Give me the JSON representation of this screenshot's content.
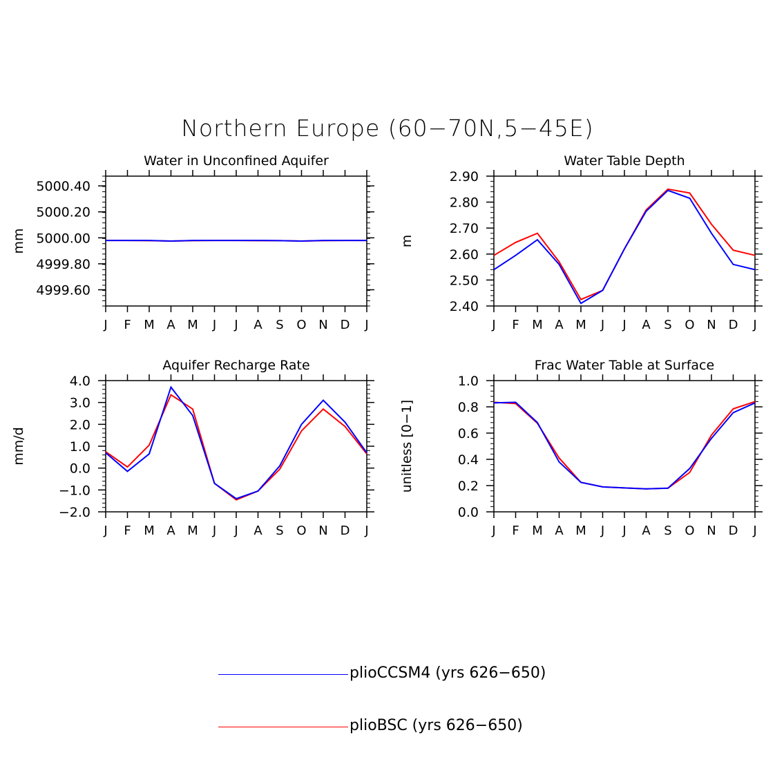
{
  "title": "Northern Europe (60−70N,5−45E)",
  "colors": {
    "plioCCSM4": "#0000ff",
    "plioBSC": "#ff0000"
  },
  "legend": [
    {
      "label": "plioCCSM4 (yrs 626−650)",
      "color": "#0000ff"
    },
    {
      "label": "plioBSC (yrs 626−650)",
      "color": "#ff0000"
    }
  ],
  "chart_data": [
    {
      "type": "line",
      "title": "Water in Unconfined Aquifer",
      "xlabel": "",
      "ylabel": "mm",
      "categories": [
        "J",
        "F",
        "M",
        "A",
        "M",
        "J",
        "J",
        "A",
        "S",
        "O",
        "N",
        "D",
        "J"
      ],
      "ylim": [
        4999.475,
        5000.475
      ],
      "yticks": [
        4999.6,
        4999.8,
        5000.0,
        5000.2,
        5000.4
      ],
      "ytick_labels": [
        "4999.60",
        "4999.80",
        "5000.00",
        "5000.20",
        "5000.40"
      ],
      "series": [
        {
          "name": "plioCCSM4",
          "color": "#0000ff",
          "values": [
            4999.98,
            4999.98,
            4999.98,
            4999.975,
            4999.98,
            4999.98,
            4999.98,
            4999.98,
            4999.978,
            4999.975,
            4999.98,
            4999.98,
            4999.98
          ]
        },
        {
          "name": "plioBSC",
          "color": "#ff0000",
          "values": [
            4999.98,
            4999.98,
            4999.978,
            4999.975,
            4999.978,
            4999.98,
            4999.98,
            4999.978,
            4999.978,
            4999.975,
            4999.978,
            4999.98,
            4999.98
          ]
        }
      ]
    },
    {
      "type": "line",
      "title": "Water Table Depth",
      "xlabel": "",
      "ylabel": "m",
      "categories": [
        "J",
        "F",
        "M",
        "A",
        "M",
        "J",
        "J",
        "A",
        "S",
        "O",
        "N",
        "D",
        "J"
      ],
      "ylim": [
        2.4,
        2.9
      ],
      "yticks": [
        2.4,
        2.5,
        2.6,
        2.7,
        2.8,
        2.9
      ],
      "ytick_labels": [
        "2.40",
        "2.50",
        "2.60",
        "2.70",
        "2.80",
        "2.90"
      ],
      "series": [
        {
          "name": "plioCCSM4",
          "color": "#0000ff",
          "values": [
            2.54,
            2.595,
            2.655,
            2.56,
            2.41,
            2.46,
            2.62,
            2.765,
            2.845,
            2.815,
            2.68,
            2.56,
            2.54
          ]
        },
        {
          "name": "plioBSC",
          "color": "#ff0000",
          "values": [
            2.595,
            2.645,
            2.68,
            2.57,
            2.425,
            2.46,
            2.62,
            2.77,
            2.85,
            2.835,
            2.715,
            2.615,
            2.595
          ]
        }
      ]
    },
    {
      "type": "line",
      "title": "Aquifer Recharge Rate",
      "xlabel": "",
      "ylabel": "mm/d",
      "categories": [
        "J",
        "F",
        "M",
        "A",
        "M",
        "J",
        "J",
        "A",
        "S",
        "O",
        "N",
        "D",
        "J"
      ],
      "ylim": [
        -2.0,
        4.0
      ],
      "yticks": [
        -2,
        -1,
        0,
        1,
        2,
        3,
        4
      ],
      "ytick_labels": [
        "−2.0",
        "−1.0",
        "0.0",
        "1.0",
        "2.0",
        "3.0",
        "4.0"
      ],
      "series": [
        {
          "name": "plioCCSM4",
          "color": "#0000ff",
          "values": [
            0.7,
            -0.15,
            0.65,
            3.7,
            2.4,
            -0.7,
            -1.4,
            -1.05,
            0.1,
            2.0,
            3.1,
            2.1,
            0.7
          ]
        },
        {
          "name": "plioBSC",
          "color": "#ff0000",
          "values": [
            0.75,
            0.05,
            1.05,
            3.35,
            2.7,
            -0.7,
            -1.45,
            -1.05,
            -0.05,
            1.7,
            2.7,
            1.9,
            0.65
          ]
        }
      ]
    },
    {
      "type": "line",
      "title": "Frac Water Table at Surface",
      "xlabel": "",
      "ylabel": "unitless [0−1]",
      "categories": [
        "J",
        "F",
        "M",
        "A",
        "M",
        "J",
        "J",
        "A",
        "S",
        "O",
        "N",
        "D",
        "J"
      ],
      "ylim": [
        0.0,
        1.0
      ],
      "yticks": [
        0,
        0.2,
        0.4,
        0.6,
        0.8,
        1.0
      ],
      "ytick_labels": [
        "0.0",
        "0.2",
        "0.4",
        "0.6",
        "0.8",
        "1.0"
      ],
      "series": [
        {
          "name": "plioCCSM4",
          "color": "#0000ff",
          "values": [
            0.83,
            0.835,
            0.68,
            0.38,
            0.225,
            0.19,
            0.182,
            0.175,
            0.18,
            0.33,
            0.56,
            0.755,
            0.83
          ]
        },
        {
          "name": "plioBSC",
          "color": "#ff0000",
          "values": [
            0.835,
            0.825,
            0.675,
            0.41,
            0.225,
            0.19,
            0.182,
            0.175,
            0.18,
            0.3,
            0.585,
            0.785,
            0.84
          ]
        }
      ]
    }
  ]
}
